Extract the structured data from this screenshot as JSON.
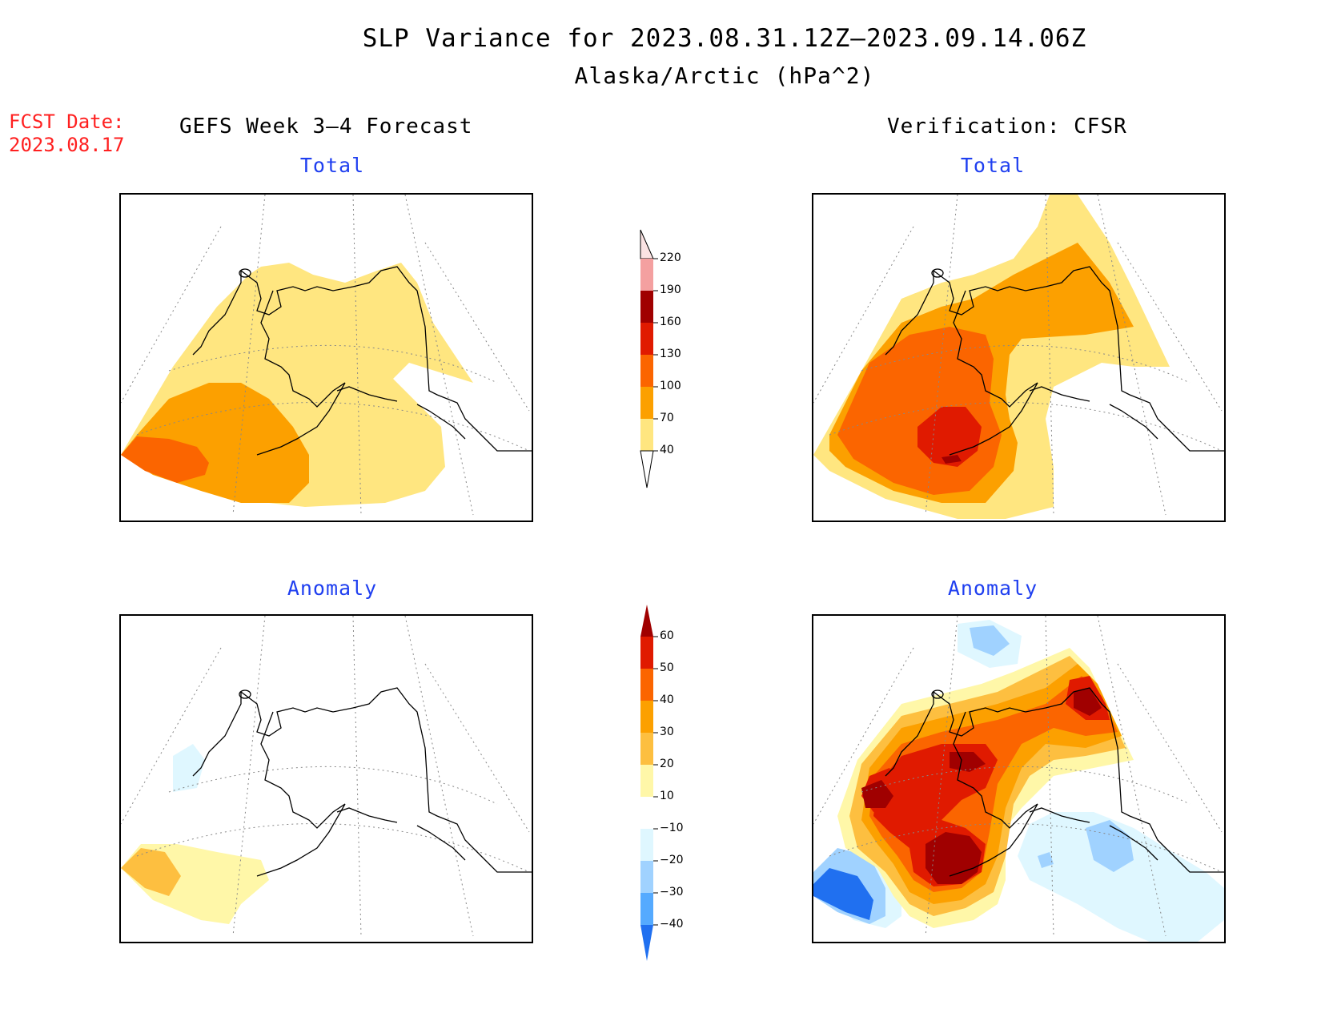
{
  "title": {
    "line1": "SLP Variance for 2023.08.31.12Z–2023.09.14.06Z",
    "line2": "Alaska/Arctic (hPa^2)"
  },
  "fcst_date": {
    "label": "FCST Date:",
    "value": "2023.08.17"
  },
  "columns": {
    "left": "GEFS Week 3–4 Forecast",
    "right": "Verification: CFSR"
  },
  "panels": {
    "top_left": "Total",
    "top_right": "Total",
    "bottom_left": "Anomaly",
    "bottom_right": "Anomaly"
  },
  "colorbars": {
    "total": {
      "labels": [
        "220",
        "190",
        "160",
        "130",
        "100",
        "70",
        "40"
      ],
      "colors": [
        "#fbe3e3",
        "#f4a0a0",
        "#a00000",
        "#e01a00",
        "#fb6500",
        "#fca000",
        "#ffe680"
      ]
    },
    "anomaly": {
      "labels": [
        "60",
        "50",
        "40",
        "30",
        "20",
        "10",
        "−10",
        "−20",
        "−30",
        "−40"
      ],
      "colors": [
        "#a00000",
        "#e01a00",
        "#fb6500",
        "#fca000",
        "#fdbf40",
        "#fff7a8",
        "#ffffff",
        "#dff7ff",
        "#a0d2ff",
        "#55aaff",
        "#2070f0",
        "#1050d0"
      ]
    }
  }
}
